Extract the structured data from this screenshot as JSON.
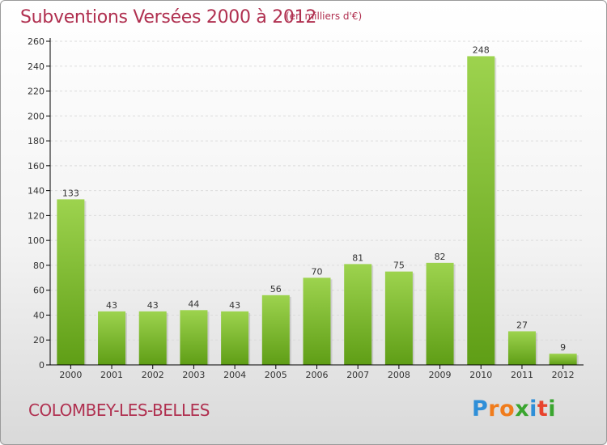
{
  "header": {
    "title": "Subventions Versées 2000 à 2012",
    "subtitle": "(en milliers d'€)"
  },
  "footer": {
    "town": "COLOMBEY-LES-BELLES",
    "logo_text": "Proxiti",
    "logo_letters": [
      {
        "char": "P",
        "color": "#2f8fd8"
      },
      {
        "char": "r",
        "color": "#f07c1c"
      },
      {
        "char": "o",
        "color": "#f07c1c"
      },
      {
        "char": "x",
        "color": "#3aa52f"
      },
      {
        "char": "i",
        "color": "#2f8fd8"
      },
      {
        "char": "t",
        "color": "#e8432d"
      },
      {
        "char": "i",
        "color": "#3aa52f"
      }
    ]
  },
  "colors": {
    "bar_top": "#9dd34e",
    "bar_bottom": "#5f9e16",
    "axis": "#000000",
    "grid": "#dcdcdc",
    "title": "#b03050"
  },
  "chart_data": {
    "type": "bar",
    "title": "Subventions Versées 2000 à 2012",
    "subtitle": "(en milliers d'€)",
    "categories": [
      "2000",
      "2001",
      "2002",
      "2003",
      "2004",
      "2005",
      "2006",
      "2007",
      "2008",
      "2009",
      "2010",
      "2011",
      "2012"
    ],
    "values": [
      133,
      43,
      43,
      44,
      43,
      56,
      70,
      81,
      75,
      82,
      248,
      27,
      9
    ],
    "ylim": [
      0,
      260
    ],
    "yticks": [
      0,
      20,
      40,
      60,
      80,
      100,
      120,
      140,
      160,
      180,
      200,
      220,
      240,
      260
    ],
    "grid": true,
    "legend": "none"
  }
}
